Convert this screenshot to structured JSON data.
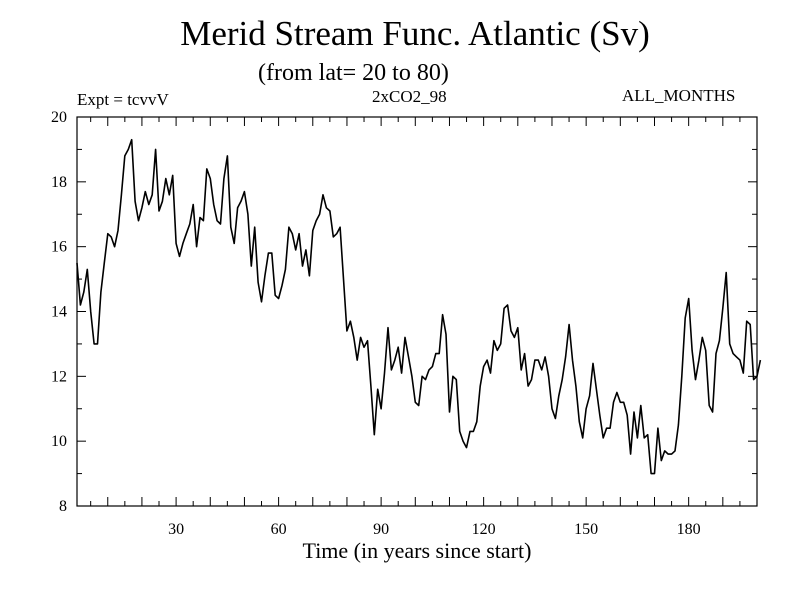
{
  "chart_data": {
    "type": "line",
    "title": "Merid Stream Func. Atlantic (Sv)",
    "subtitle": "(from lat= 20 to 80)",
    "left_label": "Expt = tcvvV",
    "center_label": "2xCO2_98",
    "right_label": "ALL_MONTHS",
    "xlabel": "Time (in years since start)",
    "ylabel": "",
    "xlim": [
      1,
      200
    ],
    "ylim": [
      8,
      20
    ],
    "xticks": [
      30,
      60,
      90,
      120,
      150,
      180
    ],
    "yticks": [
      8,
      10,
      12,
      14,
      16,
      18,
      20
    ],
    "grid": false,
    "series": [
      {
        "values": [
          15.5,
          14.2,
          14.6,
          15.3,
          14.0,
          13.0,
          13.0,
          14.6,
          15.5,
          16.4,
          16.3,
          16.0,
          16.5,
          17.6,
          18.8,
          19.0,
          19.3,
          17.4,
          16.8,
          17.2,
          17.7,
          17.3,
          17.6,
          19.0,
          17.1,
          17.4,
          18.1,
          17.6,
          18.2,
          16.1,
          15.7,
          16.1,
          16.4,
          16.7,
          17.3,
          16.0,
          16.9,
          16.8,
          18.4,
          18.1,
          17.3,
          16.8,
          16.7,
          18.1,
          18.8,
          16.6,
          16.1,
          17.2,
          17.4,
          17.7,
          17.0,
          15.4,
          16.6,
          14.9,
          14.3,
          15.1,
          15.8,
          15.8,
          14.5,
          14.4,
          14.8,
          15.3,
          16.6,
          16.4,
          15.9,
          16.4,
          15.4,
          15.9,
          15.1,
          16.5,
          16.8,
          17.0,
          17.6,
          17.2,
          17.1,
          16.3,
          16.4,
          16.6,
          15.0,
          13.4,
          13.7,
          13.2,
          12.5,
          13.2,
          12.9,
          13.1,
          11.7,
          10.2,
          11.6,
          11.0,
          12.1,
          13.5,
          12.2,
          12.5,
          12.9,
          12.1,
          13.2,
          12.6,
          12.0,
          11.2,
          11.1,
          12.0,
          11.9,
          12.2,
          12.3,
          12.7,
          12.7,
          13.9,
          13.3,
          10.9,
          12.0,
          11.9,
          10.3,
          10.0,
          9.8,
          10.3,
          10.3,
          10.6,
          11.7,
          12.3,
          12.5,
          12.1,
          13.1,
          12.8,
          13.0,
          14.1,
          14.2,
          13.4,
          13.2,
          13.5,
          12.2,
          12.7,
          11.7,
          11.9,
          12.5,
          12.5,
          12.2,
          12.6,
          12.0,
          11.0,
          10.7,
          11.4,
          11.9,
          12.6,
          13.6,
          12.5,
          11.7,
          10.6,
          10.1,
          11.0,
          11.4,
          12.4,
          11.6,
          10.8,
          10.1,
          10.4,
          10.4,
          11.2,
          11.5,
          11.2,
          11.2,
          10.8,
          9.6,
          10.9,
          10.1,
          11.1,
          10.1,
          10.2,
          9.0,
          9.0,
          10.4,
          9.4,
          9.7,
          9.6,
          9.6,
          9.7,
          10.5,
          12.0,
          13.8,
          14.4,
          12.8,
          11.9,
          12.5,
          13.2,
          12.8,
          11.1,
          10.9,
          12.7,
          13.1,
          14.1,
          15.2,
          13.0,
          12.7,
          12.6,
          12.5,
          12.1,
          13.7,
          13.6,
          11.9,
          12.0,
          12.5
        ],
        "color": "#000000"
      }
    ]
  }
}
